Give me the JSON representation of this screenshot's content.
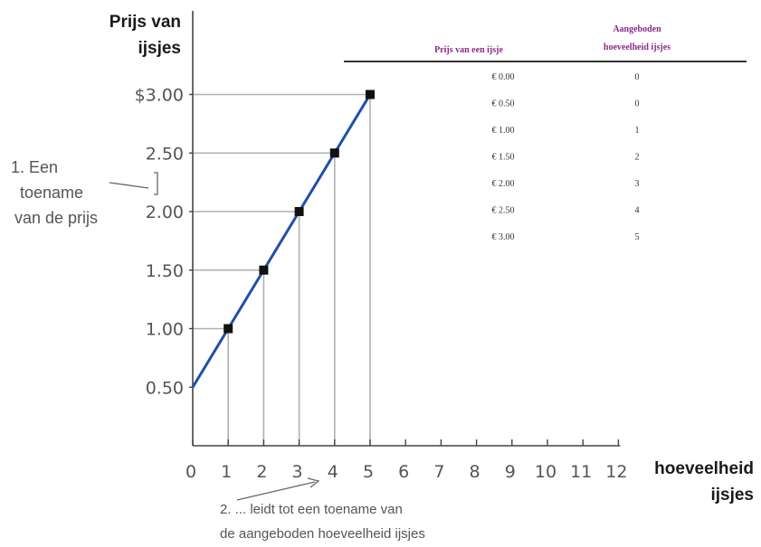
{
  "chart_data": {
    "type": "line",
    "ylabel": [
      "Prijs van",
      "ijsjes"
    ],
    "xlabel": [
      "hoeveelheid",
      "ijsjes"
    ],
    "y_ticks": [
      "$3.00",
      "2.50",
      "2.00",
      "1.50",
      "1.00",
      "0.50"
    ],
    "y_tick_values": [
      3.0,
      2.5,
      2.0,
      1.5,
      1.0,
      0.5
    ],
    "x_ticks": [
      "0",
      "1",
      "2",
      "3",
      "4",
      "5",
      "6",
      "7",
      "8",
      "9",
      "10",
      "11",
      "12"
    ],
    "x_tick_values": [
      0,
      1,
      2,
      3,
      4,
      5,
      6,
      7,
      8,
      9,
      10,
      11,
      12
    ],
    "xlim": [
      0,
      12
    ],
    "ylim": [
      0,
      3.3
    ],
    "series": [
      {
        "color": "#1f4fa8",
        "line_x": [
          0,
          5
        ],
        "line_y": [
          0.5,
          3.0
        ],
        "points": [
          {
            "x": 1,
            "y": 1.0
          },
          {
            "x": 2,
            "y": 1.5
          },
          {
            "x": 3,
            "y": 2.0
          },
          {
            "x": 4,
            "y": 2.5
          },
          {
            "x": 5,
            "y": 3.0
          }
        ]
      }
    ],
    "table": {
      "headers": [
        "Prijs van een ijsje",
        "Aangeboden hoeveelheid ijsjes"
      ],
      "rows": [
        [
          "€ 0.00",
          "0"
        ],
        [
          "€ 0.50",
          "0"
        ],
        [
          "€ 1.00",
          "1"
        ],
        [
          "€ 1.50",
          "2"
        ],
        [
          "€ 2.00",
          "3"
        ],
        [
          "€ 2.50",
          "4"
        ],
        [
          "€ 3.00",
          "5"
        ]
      ]
    },
    "annotations": {
      "a1": [
        "1. Een",
        "toename",
        "van de prijs"
      ],
      "a2": [
        "2.  ...   leidt tot een toename van",
        "de aangeboden hoeveelheid ijsjes"
      ]
    },
    "grid": false,
    "legend": "none"
  }
}
